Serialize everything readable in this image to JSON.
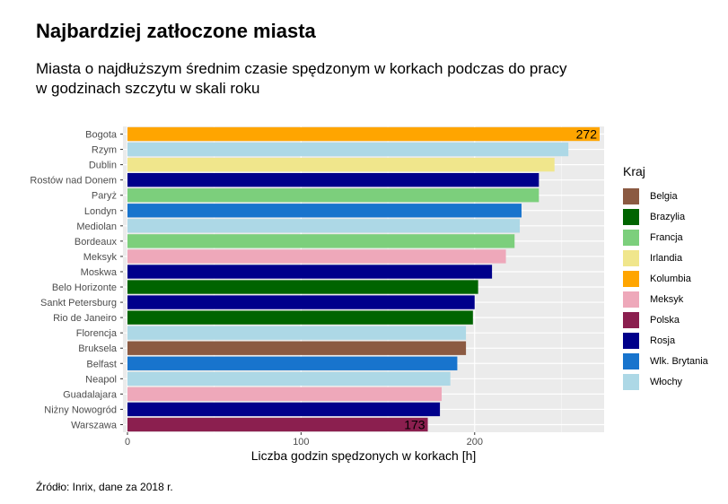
{
  "header": {
    "title": "Najbardziej zatłoczone miasta",
    "subtitle": "Miasta o najdłuższym średnim czasie spędzonym w korkach podczas do pracy w godzinach szczytu w skali roku"
  },
  "caption": "Źródło: Inrix, dane za 2018 r.",
  "colors": {
    "Belgia": "#8b5a42",
    "Brazylia": "#006400",
    "Francja": "#7ccf7c",
    "Irlandia": "#f0e68c",
    "Kolumbia": "#ffa500",
    "Meksyk": "#eea8ba",
    "Polska": "#8b1f4f",
    "Rosja": "#00008b",
    "Wlk. Brytania": "#1874cd",
    "Włochy": "#add8e6"
  },
  "legend": {
    "title": "Kraj",
    "items": [
      "Belgia",
      "Brazylia",
      "Francja",
      "Irlandia",
      "Kolumbia",
      "Meksyk",
      "Polska",
      "Rosja",
      "Wlk. Brytania",
      "Włochy"
    ]
  },
  "chart_data": {
    "type": "bar",
    "orientation": "horizontal",
    "xlabel": "Liczba godzin spędzonych w korkach [h]",
    "ylabel": "",
    "xlim": [
      0,
      272
    ],
    "xticks": [
      0,
      100,
      200
    ],
    "grid": true,
    "legend_position": "right",
    "categories": [
      "Bogota",
      "Rzym",
      "Dublin",
      "Rostów nad Donem",
      "Paryż",
      "Londyn",
      "Mediolan",
      "Bordeaux",
      "Meksyk",
      "Moskwa",
      "Belo Horizonte",
      "Sankt Petersburg",
      "Rio de Janeiro",
      "Florencja",
      "Bruksela",
      "Belfast",
      "Neapol",
      "Guadalajara",
      "Niżny Nowogród",
      "Warszawa"
    ],
    "values": [
      272,
      254,
      246,
      237,
      237,
      227,
      226,
      223,
      218,
      210,
      202,
      200,
      199,
      195,
      195,
      190,
      186,
      181,
      180,
      173
    ],
    "country": [
      "Kolumbia",
      "Włochy",
      "Irlandia",
      "Rosja",
      "Francja",
      "Wlk. Brytania",
      "Włochy",
      "Francja",
      "Meksyk",
      "Rosja",
      "Brazylia",
      "Rosja",
      "Brazylia",
      "Włochy",
      "Belgia",
      "Wlk. Brytania",
      "Włochy",
      "Meksyk",
      "Rosja",
      "Polska"
    ],
    "value_labels": [
      {
        "category": "Bogota",
        "text": "272"
      },
      {
        "category": "Warszawa",
        "text": "173"
      }
    ]
  }
}
